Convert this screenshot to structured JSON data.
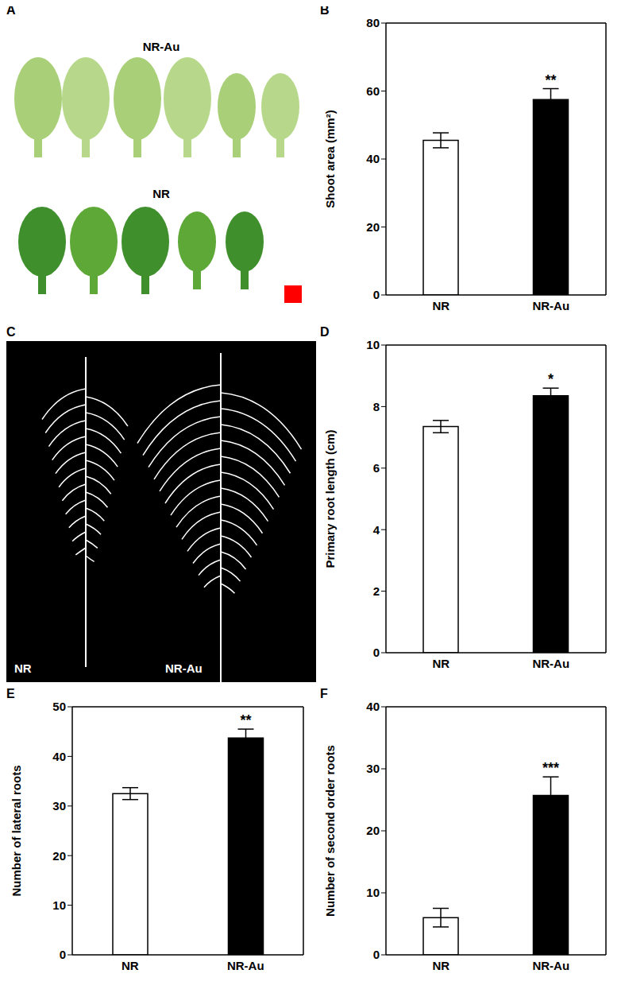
{
  "chart_data": [
    {
      "panel": "B",
      "type": "bar",
      "categories": [
        "NR",
        "NR-Au"
      ],
      "values": [
        45.5,
        57.5
      ],
      "errors": [
        2.2,
        3.2
      ],
      "colors": [
        "#ffffff",
        "#000000"
      ],
      "ylabel": "Shoot area (mm²)",
      "ylim": [
        0,
        80
      ],
      "yticks": [
        0,
        20,
        40,
        60,
        80
      ],
      "annotations": [
        {
          "category": "NR-Au",
          "text": "**"
        }
      ]
    },
    {
      "panel": "D",
      "type": "bar",
      "categories": [
        "NR",
        "NR-Au"
      ],
      "values": [
        7.35,
        8.35
      ],
      "errors": [
        0.2,
        0.25
      ],
      "colors": [
        "#ffffff",
        "#000000"
      ],
      "ylabel": "Primary root length (cm)",
      "ylim": [
        0,
        10
      ],
      "yticks": [
        0,
        2,
        4,
        6,
        8,
        10
      ],
      "annotations": [
        {
          "category": "NR-Au",
          "text": "*"
        }
      ]
    },
    {
      "panel": "E",
      "type": "bar",
      "categories": [
        "NR",
        "NR-Au"
      ],
      "values": [
        32.5,
        43.7
      ],
      "errors": [
        1.2,
        1.8
      ],
      "colors": [
        "#ffffff",
        "#000000"
      ],
      "ylabel": "Number of lateral roots",
      "ylim": [
        0,
        50
      ],
      "yticks": [
        0,
        10,
        20,
        30,
        40,
        50
      ],
      "annotations": [
        {
          "category": "NR-Au",
          "text": "**"
        }
      ]
    },
    {
      "panel": "F",
      "type": "bar",
      "categories": [
        "NR",
        "NR-Au"
      ],
      "values": [
        6,
        25.7
      ],
      "errors": [
        1.5,
        3
      ],
      "colors": [
        "#ffffff",
        "#000000"
      ],
      "ylabel": "Number of second order roots",
      "ylim": [
        0,
        40
      ],
      "yticks": [
        0,
        10,
        20,
        30,
        40
      ],
      "annotations": [
        {
          "category": "NR-Au",
          "text": "***"
        }
      ]
    }
  ],
  "images": [
    {
      "panel": "A",
      "type": "image",
      "labels": [
        "NR-Au",
        "NR"
      ]
    },
    {
      "panel": "C",
      "type": "image",
      "labels": [
        "NR",
        "NR-Au"
      ]
    }
  ]
}
